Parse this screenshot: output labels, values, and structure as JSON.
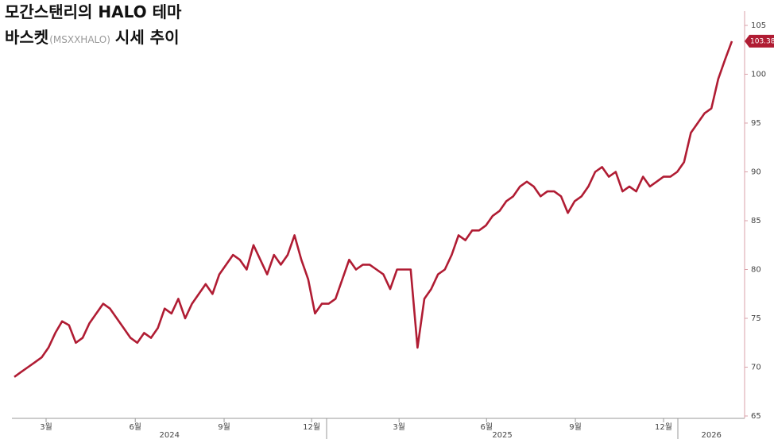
{
  "chart_data": {
    "type": "line",
    "title_line1": "모간스탠리의 HALO 테마",
    "title_line2": "바스켓",
    "title_ticker": "(MSXXHALO)",
    "title_line2_end": "시세 추이",
    "series": [
      {
        "color": "#b01c33",
        "values": [
          69.0,
          69.5,
          70.0,
          70.5,
          71.0,
          72.0,
          73.5,
          74.7,
          74.3,
          72.5,
          73.0,
          74.5,
          75.5,
          76.5,
          76.0,
          75.0,
          74.0,
          73.0,
          72.5,
          73.5,
          73.0,
          74.0,
          76.0,
          75.5,
          77.0,
          75.0,
          76.5,
          77.5,
          78.5,
          77.5,
          79.5,
          80.5,
          81.5,
          81.0,
          80.0,
          82.5,
          81.0,
          79.5,
          81.5,
          80.5,
          81.5,
          83.5,
          81.0,
          79.0,
          75.5,
          76.5,
          76.5,
          77.0,
          79.0,
          81.0,
          80.0,
          80.5,
          80.5,
          80.0,
          79.5,
          78.0,
          80.0,
          80.0,
          80.0,
          72.0,
          77.0,
          78.0,
          79.5,
          80.0,
          81.5,
          83.5,
          83.0,
          84.0,
          84.0,
          84.5,
          85.5,
          86.0,
          87.0,
          87.5,
          88.5,
          89.0,
          88.5,
          87.5,
          88.0,
          88.0,
          87.5,
          85.8,
          87.0,
          87.5,
          88.5,
          90.0,
          90.5,
          89.5,
          90.0,
          88.0,
          88.5,
          88.0,
          89.5,
          88.5,
          89.0,
          89.5,
          89.5,
          90.0,
          91.0,
          94.0,
          95.0,
          96.0,
          96.5,
          99.5,
          101.5,
          103.38
        ]
      }
    ],
    "ylim": [
      65,
      105
    ],
    "yticks": [
      65,
      70,
      75,
      80,
      85,
      90,
      95,
      100,
      105
    ],
    "xlim": [
      0,
      105
    ],
    "xticks": [
      {
        "value": 4.65,
        "label": "3월"
      },
      {
        "value": 17.7,
        "label": "6월"
      },
      {
        "value": 30.7,
        "label": "9월"
      },
      {
        "value": 43.5,
        "label": "12월"
      },
      {
        "value": 56.3,
        "label": "3월"
      },
      {
        "value": 69.1,
        "label": "6월"
      },
      {
        "value": 82.1,
        "label": "9월"
      },
      {
        "value": 95.0,
        "label": "12월"
      }
    ],
    "year_ticks": [
      {
        "value": 22.7,
        "label": "2024"
      },
      {
        "value": 71.4,
        "label": "2025"
      },
      {
        "value": 102.0,
        "label": "2026"
      }
    ],
    "y_axis_side": "right"
  }
}
